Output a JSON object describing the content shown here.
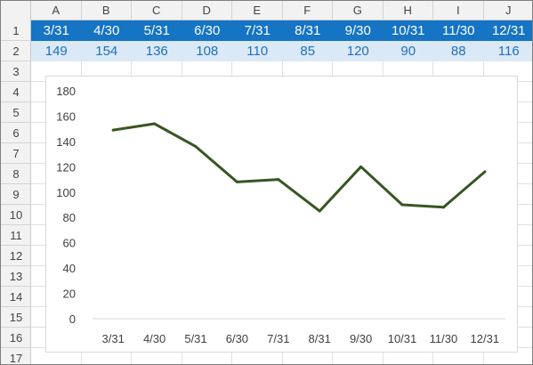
{
  "spreadsheet": {
    "columns": [
      "A",
      "B",
      "C",
      "D",
      "E",
      "F",
      "G",
      "H",
      "I",
      "J"
    ],
    "rows": [
      "1",
      "2",
      "3",
      "4",
      "5",
      "6",
      "7",
      "8",
      "9",
      "10",
      "11",
      "12",
      "13",
      "14",
      "15",
      "16",
      "17"
    ],
    "header_row": [
      "3/31",
      "4/30",
      "5/31",
      "6/30",
      "7/31",
      "8/31",
      "9/30",
      "10/31",
      "11/30",
      "12/31"
    ],
    "value_row": [
      "149",
      "154",
      "136",
      "108",
      "110",
      "85",
      "120",
      "90",
      "88",
      "116"
    ],
    "colors": {
      "header_fill": "#1574c4",
      "value_fill": "#dbe9f6",
      "value_text": "#1f6fbf"
    }
  },
  "chart_data": {
    "type": "line",
    "categories": [
      "3/31",
      "4/30",
      "5/31",
      "6/30",
      "7/31",
      "8/31",
      "9/30",
      "10/31",
      "11/30",
      "12/31"
    ],
    "series": [
      {
        "values": [
          149,
          154,
          136,
          108,
          110,
          85,
          120,
          90,
          88,
          116
        ],
        "color": "#375623"
      }
    ],
    "ylim": [
      0,
      180
    ],
    "yticks": [
      "0",
      "20",
      "40",
      "60",
      "80",
      "100",
      "120",
      "140",
      "160",
      "180"
    ],
    "grid": false,
    "legend": "none"
  }
}
